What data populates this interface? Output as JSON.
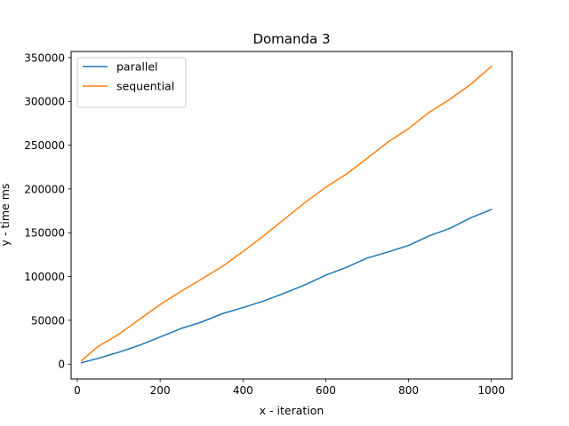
{
  "chart_data": {
    "type": "line",
    "title": "Domanda 3",
    "xlabel": "x - iteration",
    "ylabel": "y - time ms",
    "xlim": [
      -15,
      1050
    ],
    "ylim": [
      -17000,
      357000
    ],
    "x_ticks": [
      0,
      200,
      400,
      600,
      800,
      1000
    ],
    "y_ticks": [
      0,
      50000,
      100000,
      150000,
      200000,
      250000,
      300000,
      350000
    ],
    "grid": false,
    "legend_position": "top-left",
    "x": [
      10,
      50,
      100,
      150,
      200,
      250,
      300,
      350,
      400,
      450,
      500,
      550,
      600,
      650,
      700,
      750,
      800,
      850,
      900,
      950,
      1000
    ],
    "series": [
      {
        "name": "parallel",
        "color": "#1f77b4",
        "values": [
          1500,
          6500,
          13500,
          21500,
          31000,
          40500,
          48000,
          57500,
          64500,
          72000,
          81000,
          90500,
          101500,
          110500,
          121000,
          128000,
          135500,
          146500,
          155000,
          167000,
          176500
        ]
      },
      {
        "name": "sequential",
        "color": "#ff7f0e",
        "values": [
          4000,
          20000,
          34000,
          51000,
          68000,
          83000,
          97000,
          111500,
          128500,
          146500,
          165500,
          184500,
          202000,
          217000,
          235000,
          253500,
          269000,
          287500,
          302500,
          319500,
          340000
        ]
      }
    ]
  }
}
